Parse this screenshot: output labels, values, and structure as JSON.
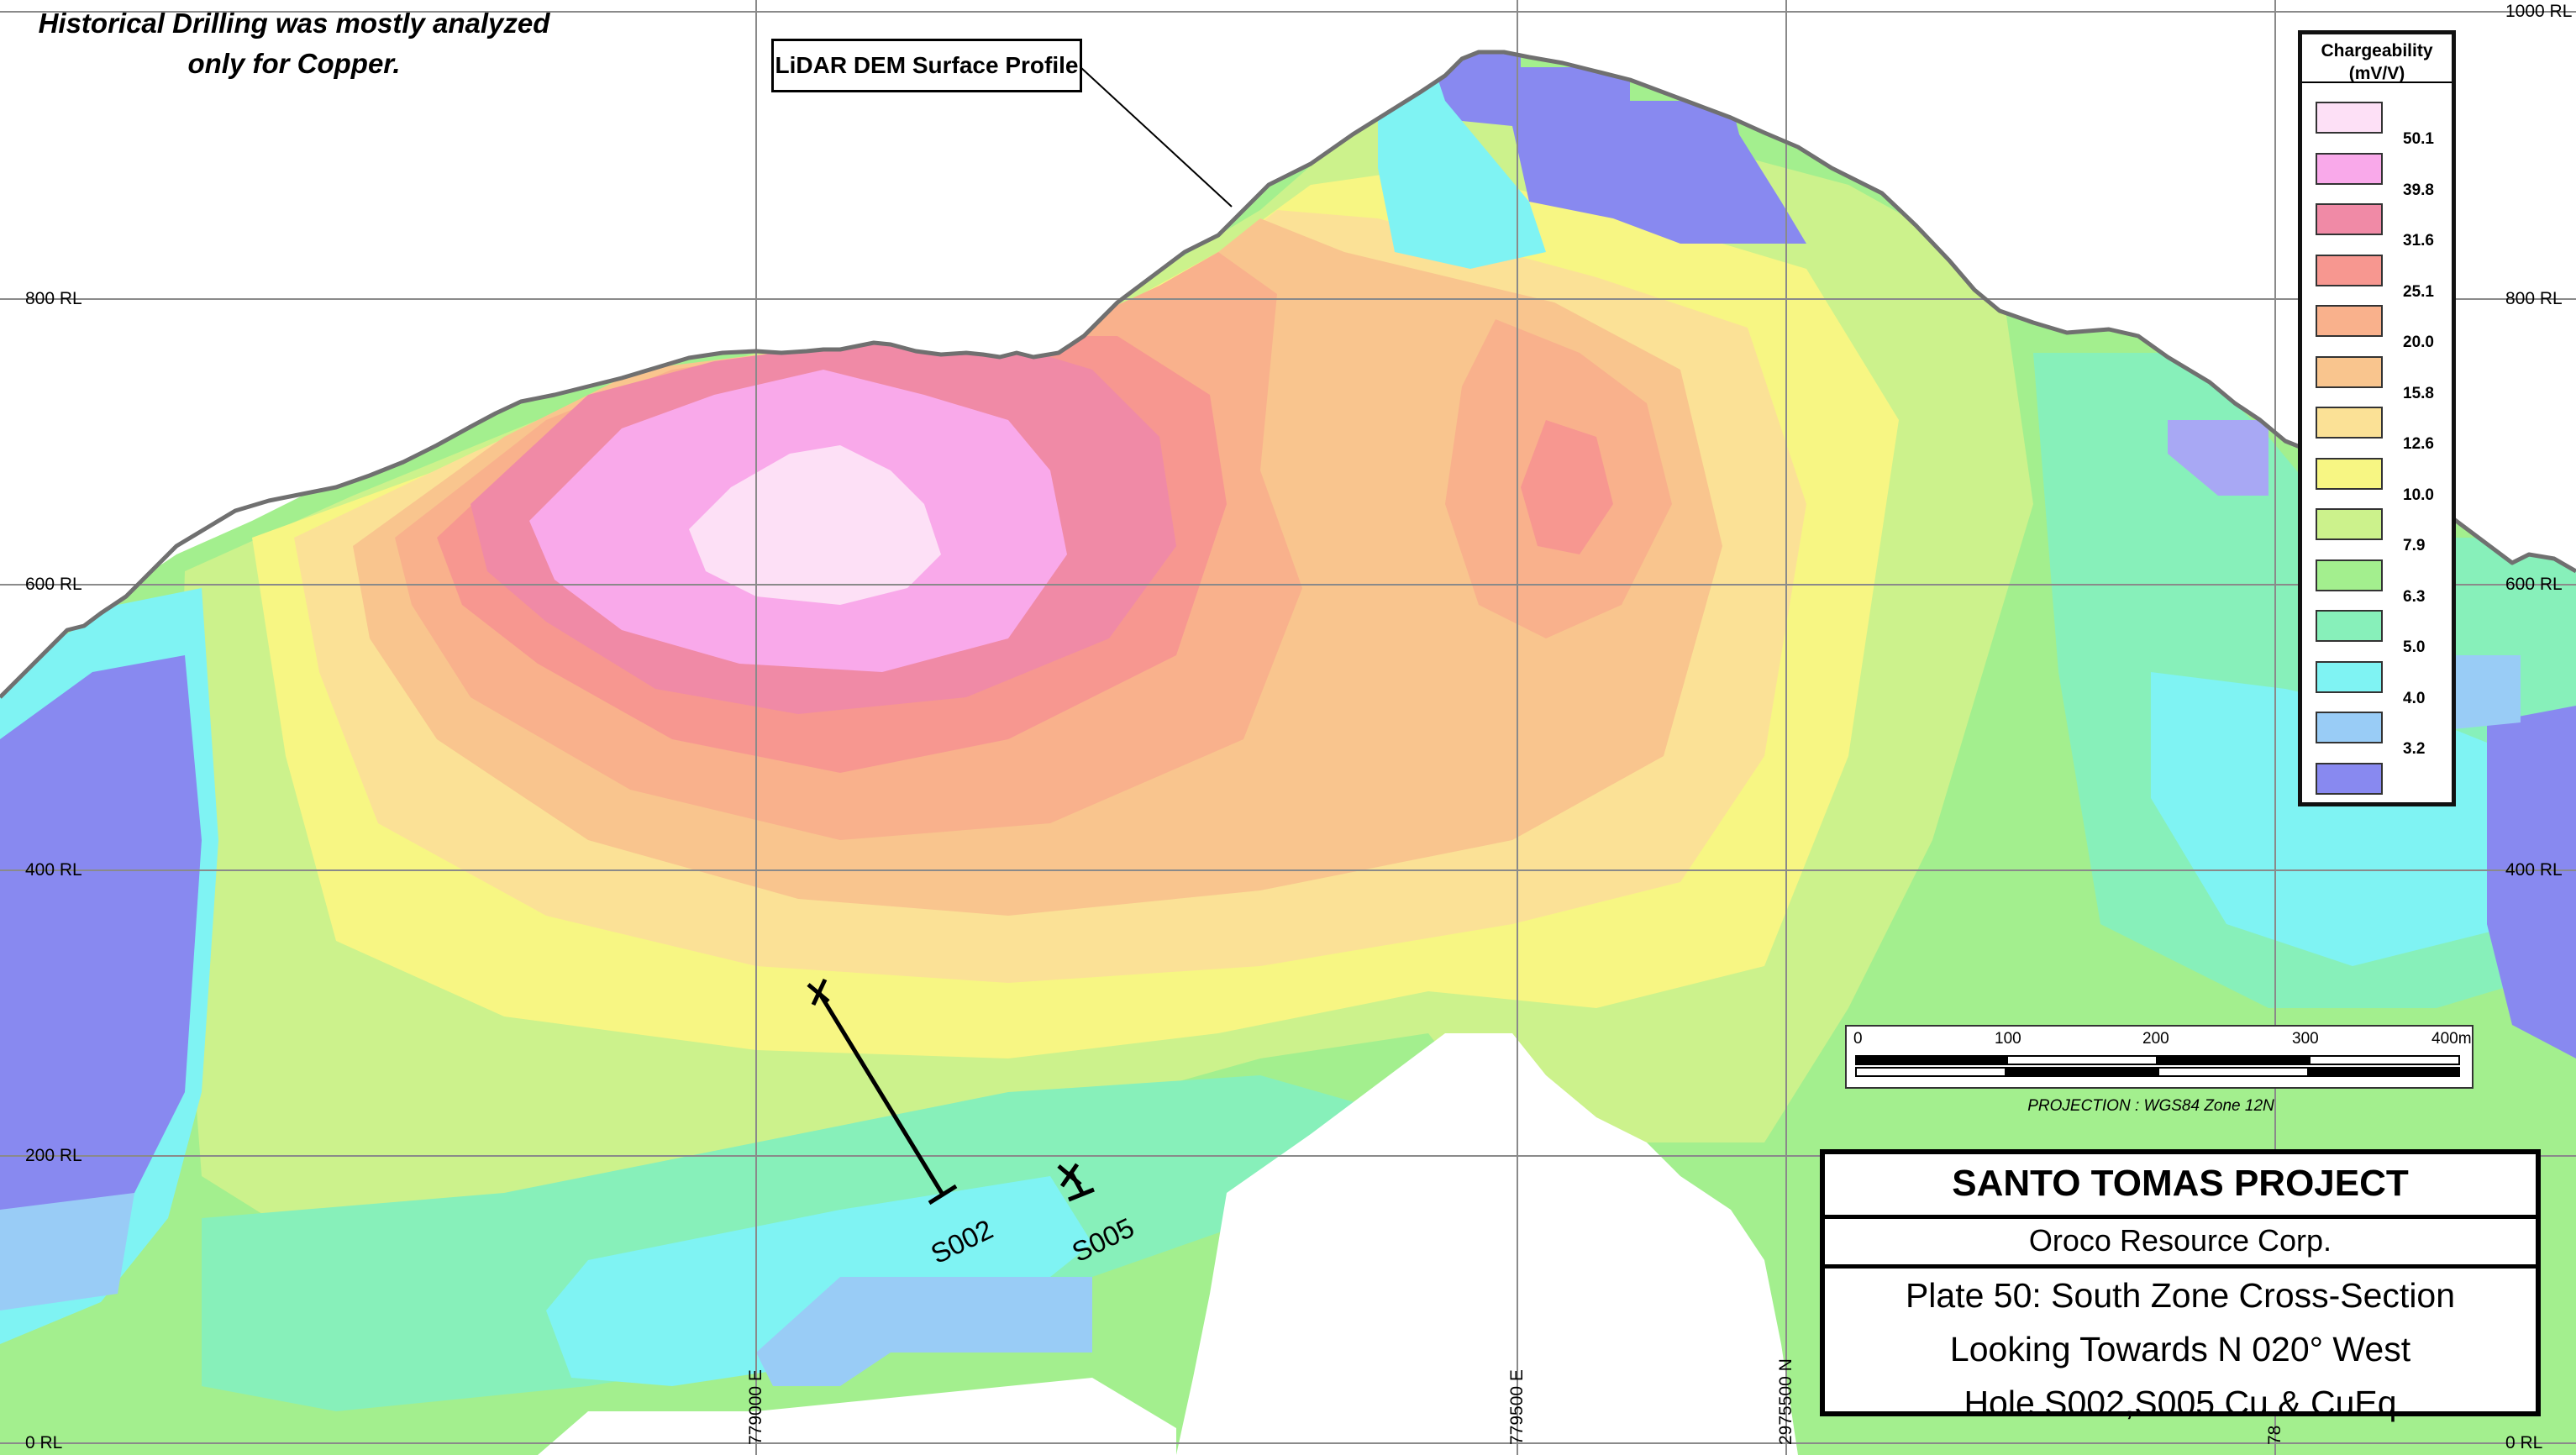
{
  "note": {
    "line1": "Historical Drilling was mostly analyzed",
    "line2": "only for Copper."
  },
  "surface_label": "LiDAR DEM Surface Profile",
  "legend": {
    "title_line1": "Chargeability",
    "title_line2": "(mV/V)",
    "items": [
      {
        "value": "50.1",
        "color": "#fde0f6"
      },
      {
        "value": "39.8",
        "color": "#f9a9ea"
      },
      {
        "value": "31.6",
        "color": "#f08aa6"
      },
      {
        "value": "25.1",
        "color": "#f79790"
      },
      {
        "value": "20.0",
        "color": "#f9b18c"
      },
      {
        "value": "15.8",
        "color": "#f9c58e"
      },
      {
        "value": "12.6",
        "color": "#fbe196"
      },
      {
        "value": "10.0",
        "color": "#f7f683"
      },
      {
        "value": "7.9",
        "color": "#ccf28c"
      },
      {
        "value": "6.3",
        "color": "#a3ef8e"
      },
      {
        "value": "5.0",
        "color": "#87f0ba"
      },
      {
        "value": "4.0",
        "color": "#7ff3f3"
      },
      {
        "value": "3.2",
        "color": "#99ccf6"
      },
      {
        "value": "",
        "color": "#8889f0"
      }
    ]
  },
  "rl_labels": {
    "left": [
      "800 RL",
      "600 RL",
      "400 RL",
      "200 RL",
      "0 RL"
    ],
    "right": [
      "1000 RL",
      "800 RL",
      "600 RL",
      "400 RL",
      "0 RL"
    ]
  },
  "grid_labels": {
    "e1": "779000 E",
    "e2": "779500 E",
    "n1": "2975500 N",
    "n2": "78"
  },
  "scale": {
    "ticks": [
      "0",
      "100",
      "200",
      "300",
      "400m"
    ],
    "projection": "PROJECTION : WGS84 Zone 12N"
  },
  "title_block": {
    "project": "SANTO TOMAS PROJECT",
    "company": "Oroco Resource Corp.",
    "line1": "Plate 50: South Zone Cross-Section",
    "line2": "Looking Towards N 020° West",
    "line3": "Hole S002,S005 Cu & CuEq"
  },
  "holes": {
    "h1": "S002",
    "h2": "S005"
  }
}
